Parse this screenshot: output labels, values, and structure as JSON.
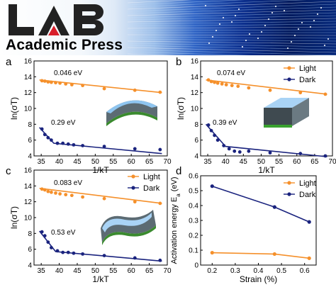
{
  "banner": {
    "logo_text": "LAB",
    "publisher": "Academic Press"
  },
  "colors": {
    "light": "#f5902b",
    "dark": "#1a237e"
  },
  "chart_data": [
    {
      "panel": "a",
      "type": "scatter",
      "xlabel": "1/kT",
      "ylabel": "ln(σT)",
      "xlim": [
        33,
        70
      ],
      "ylim": [
        4,
        16
      ],
      "xticks": [
        35,
        40,
        45,
        50,
        55,
        60,
        65,
        70
      ],
      "yticks": [
        4,
        6,
        8,
        10,
        12,
        14,
        16
      ],
      "legend_position": "none",
      "annotations": [
        "0.046 eV",
        "0.29 eV"
      ],
      "series": [
        {
          "name": "Light",
          "color": "#f5902b",
          "points": [
            [
              35.2,
              13.5
            ],
            [
              36,
              13.45
            ],
            [
              36.9,
              13.35
            ],
            [
              37.8,
              13.3
            ],
            [
              39,
              13.25
            ],
            [
              40.2,
              13.2
            ],
            [
              41.8,
              13.1
            ],
            [
              43.5,
              13.0
            ],
            [
              46.5,
              12.9
            ],
            [
              52.5,
              12.5
            ],
            [
              61,
              12.3
            ],
            [
              68,
              12.05
            ]
          ],
          "fit": [
            [
              34.5,
              13.6
            ],
            [
              68.5,
              12.0
            ]
          ]
        },
        {
          "name": "Dark",
          "color": "#1a237e",
          "points": [
            [
              35.2,
              7.4
            ],
            [
              36,
              6.7
            ],
            [
              36.9,
              6.3
            ],
            [
              37.8,
              6.0
            ],
            [
              39.5,
              5.6
            ],
            [
              41,
              5.6
            ],
            [
              42.5,
              5.5
            ],
            [
              44,
              5.4
            ],
            [
              46.5,
              5.3
            ],
            [
              52.5,
              5.2
            ],
            [
              61,
              4.9
            ],
            [
              68,
              4.8
            ]
          ],
          "fit": [
            [
              34.5,
              7.6
            ],
            [
              38.5,
              5.6
            ],
            [
              68.5,
              4.3
            ]
          ]
        }
      ]
    },
    {
      "panel": "b",
      "type": "scatter",
      "xlabel": "1/kT",
      "ylabel": "ln(σT)",
      "xlim": [
        33,
        70
      ],
      "ylim": [
        4,
        16
      ],
      "xticks": [
        35,
        40,
        45,
        50,
        55,
        60,
        65,
        70
      ],
      "yticks": [
        4,
        6,
        8,
        10,
        12,
        14,
        16
      ],
      "legend_position": "top-right",
      "annotations": [
        "0.074 eV",
        "0.39 eV"
      ],
      "series": [
        {
          "name": "Light",
          "color": "#f5902b",
          "points": [
            [
              35.2,
              13.6
            ],
            [
              36,
              13.4
            ],
            [
              36.9,
              13.3
            ],
            [
              37.8,
              13.2
            ],
            [
              39,
              13.1
            ],
            [
              40.2,
              13.0
            ],
            [
              41.8,
              12.9
            ],
            [
              43.5,
              12.8
            ],
            [
              46.5,
              12.6
            ],
            [
              52.5,
              12.3
            ],
            [
              61,
              12.0
            ],
            [
              68,
              11.8
            ]
          ],
          "fit": [
            [
              34.5,
              13.6
            ],
            [
              68.5,
              11.8
            ]
          ]
        },
        {
          "name": "Dark",
          "color": "#1a237e",
          "points": [
            [
              35.2,
              7.9
            ],
            [
              36,
              7.2
            ],
            [
              36.9,
              6.6
            ],
            [
              37.8,
              6.0
            ],
            [
              39.5,
              5.3
            ],
            [
              41,
              4.9
            ],
            [
              42.5,
              4.6
            ],
            [
              44,
              4.5
            ],
            [
              46.5,
              4.6
            ],
            [
              52.5,
              4.4
            ],
            [
              61,
              4.3
            ],
            [
              68,
              4.0
            ]
          ],
          "fit": [
            [
              34.5,
              8.0
            ],
            [
              40,
              5.2
            ],
            [
              68.5,
              3.9
            ]
          ]
        }
      ]
    },
    {
      "panel": "c",
      "type": "scatter",
      "xlabel": "1/kT",
      "ylabel": "ln(σT)",
      "xlim": [
        33,
        70
      ],
      "ylim": [
        4,
        16
      ],
      "xticks": [
        35,
        40,
        45,
        50,
        55,
        60,
        65,
        70
      ],
      "yticks": [
        4,
        6,
        8,
        10,
        12,
        14,
        16
      ],
      "legend_position": "top-right",
      "annotations": [
        "0.083 eV",
        "0.53 eV"
      ],
      "series": [
        {
          "name": "Light",
          "color": "#f5902b",
          "points": [
            [
              35.2,
              13.6
            ],
            [
              36,
              13.5
            ],
            [
              36.9,
              13.3
            ],
            [
              37.8,
              13.2
            ],
            [
              39,
              13.1
            ],
            [
              40.2,
              13.0
            ],
            [
              41.8,
              12.9
            ],
            [
              43.5,
              12.8
            ],
            [
              46.5,
              12.6
            ],
            [
              52.5,
              12.4
            ],
            [
              61,
              12.0
            ],
            [
              68,
              11.8
            ]
          ],
          "fit": [
            [
              34.5,
              13.7
            ],
            [
              68.5,
              11.8
            ]
          ]
        },
        {
          "name": "Dark",
          "color": "#1a237e",
          "points": [
            [
              35.2,
              8.2
            ],
            [
              36,
              7.7
            ],
            [
              36.9,
              6.9
            ],
            [
              37.8,
              6.2
            ],
            [
              39.5,
              5.8
            ],
            [
              41,
              5.6
            ],
            [
              42.5,
              5.6
            ],
            [
              44,
              5.5
            ],
            [
              46.5,
              5.4
            ],
            [
              52.5,
              5.2
            ],
            [
              61,
              4.9
            ],
            [
              68,
              4.6
            ]
          ],
          "fit": [
            [
              34.5,
              8.3
            ],
            [
              39,
              5.7
            ],
            [
              68.5,
              4.5
            ]
          ]
        }
      ]
    },
    {
      "panel": "d",
      "type": "line",
      "xlabel": "Strain (%)",
      "ylabel": "Activation energy E_a (eV)",
      "xlim": [
        0.15,
        0.65
      ],
      "ylim": [
        0.0,
        0.6
      ],
      "xticks": [
        0.2,
        0.3,
        0.4,
        0.5,
        0.6
      ],
      "yticks": [
        0.0,
        0.1,
        0.2,
        0.3,
        0.4,
        0.5,
        0.6
      ],
      "legend_position": "top-right",
      "series": [
        {
          "name": "Light",
          "color": "#f5902b",
          "x": [
            0.2,
            0.47,
            0.62
          ],
          "y": [
            0.083,
            0.074,
            0.046
          ]
        },
        {
          "name": "Dark",
          "color": "#1a237e",
          "x": [
            0.2,
            0.47,
            0.62
          ],
          "y": [
            0.53,
            0.39,
            0.29
          ]
        }
      ]
    }
  ]
}
